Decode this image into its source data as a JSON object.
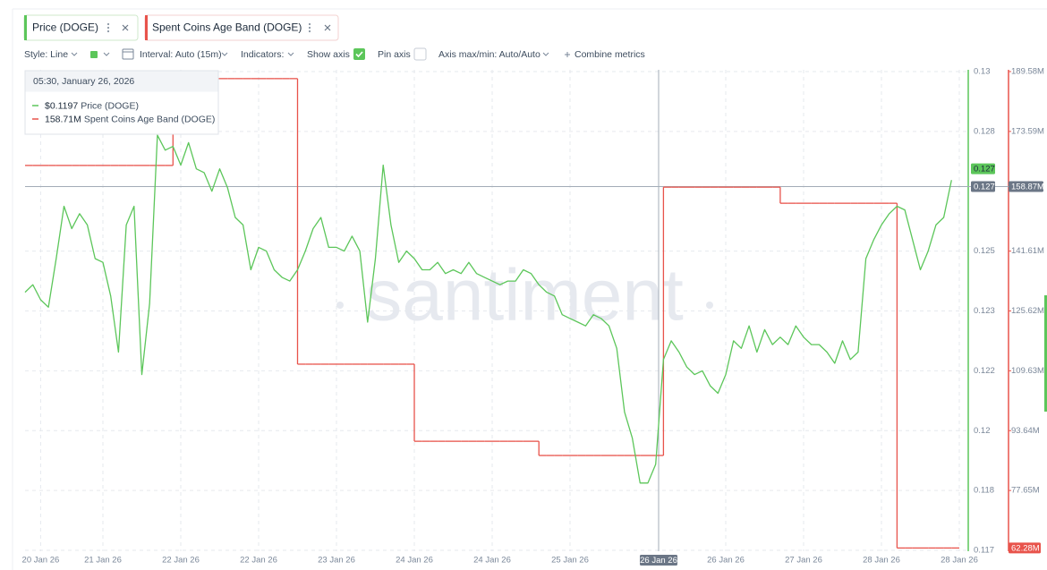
{
  "toolbar": {
    "style": "Style: Line",
    "interval": "Interval: Auto (15m)",
    "indicators": "Indicators:",
    "show_axis": "Show axis",
    "pin_axis": "Pin axis",
    "axis_range": "Axis max/min: Auto/Auto",
    "combine": "Combine metrics"
  },
  "chart_data": {
    "type": "line",
    "watermark": "santiment",
    "categories": [
      null,
      null,
      "20 Jan 26",
      null,
      null,
      null,
      null,
      null,
      null,
      null,
      "21 Jan 26",
      null,
      null,
      null,
      null,
      null,
      null,
      null,
      null,
      null,
      "22 Jan 26",
      null,
      null,
      null,
      null,
      null,
      null,
      null,
      null,
      null,
      "22 Jan 26",
      null,
      null,
      null,
      null,
      null,
      null,
      null,
      null,
      null,
      "23 Jan 26",
      null,
      null,
      null,
      null,
      null,
      null,
      null,
      null,
      null,
      "24 Jan 26",
      null,
      null,
      null,
      null,
      null,
      null,
      null,
      null,
      null,
      "24 Jan 26",
      null,
      null,
      null,
      null,
      null,
      null,
      null,
      null,
      null,
      "25 Jan 26",
      null,
      null,
      null,
      null,
      null,
      null,
      null,
      null,
      null,
      null,
      null,
      null,
      null,
      null,
      null,
      null,
      null,
      null,
      null,
      "26 Jan 26",
      null,
      null,
      null,
      null,
      null,
      null,
      null,
      null,
      null,
      "27 Jan 26",
      null,
      null,
      null,
      null,
      null,
      null,
      null,
      null,
      null,
      "28 Jan 26",
      null,
      null,
      null,
      null,
      null,
      null,
      null,
      null,
      null,
      "28 Jan 26"
    ],
    "series": [
      {
        "name": "Price (DOGE)",
        "color": "#5cc65a",
        "values": [
          0.1237,
          0.1239,
          0.1235,
          0.1233,
          0.1246,
          0.126,
          0.1254,
          0.1258,
          0.1255,
          0.1246,
          0.1245,
          0.1236,
          0.1221,
          0.1255,
          0.126,
          0.1215,
          0.1234,
          0.1279,
          0.1275,
          0.1276,
          0.1271,
          0.1277,
          0.127,
          0.1269,
          0.1264,
          0.127,
          0.1265,
          0.1257,
          0.1255,
          0.1243,
          0.1249,
          0.1248,
          0.1243,
          0.1241,
          0.124,
          0.1243,
          0.1248,
          0.1254,
          0.1257,
          0.1249,
          0.1249,
          0.1248,
          0.1252,
          0.1248,
          0.1229,
          0.1246,
          0.1271,
          0.1255,
          0.1245,
          0.1248,
          0.1246,
          0.1243,
          0.1243,
          0.1245,
          0.1242,
          0.1243,
          0.1242,
          0.1245,
          0.1242,
          0.1241,
          0.124,
          0.1239,
          0.124,
          0.124,
          0.1243,
          0.1242,
          0.1239,
          0.1237,
          0.1236,
          0.1231,
          0.123,
          0.1229,
          0.1228,
          0.1231,
          0.123,
          0.1228,
          0.1222,
          0.1205,
          0.1198,
          0.1186,
          0.1186,
          0.1191,
          0.1219,
          0.1224,
          0.1221,
          0.1217,
          0.1215,
          0.1216,
          0.1212,
          0.121,
          0.1215,
          0.1224,
          0.1222,
          0.1228,
          0.1221,
          0.1227,
          0.1223,
          0.1225,
          0.1223,
          0.1228,
          0.1225,
          0.1223,
          0.1223,
          0.1221,
          0.1218,
          0.1224,
          0.1219,
          0.1221,
          0.1246,
          0.1251,
          0.1255,
          0.1258,
          0.126,
          0.1259,
          0.1251,
          0.1243,
          0.1248,
          0.1255,
          0.1257,
          0.1267,
          null
        ]
      },
      {
        "name": "Spent Coins Age Band (DOGE)",
        "color": "#e8534b",
        "axis": "y2",
        "line_style": "step",
        "values": [
          164.5,
          164.5,
          164.5,
          164.5,
          164.5,
          164.5,
          164.5,
          164.5,
          164.5,
          164.5,
          164.5,
          164.5,
          164.5,
          164.5,
          164.5,
          164.5,
          164.5,
          164.5,
          164.5,
          187.7,
          187.7,
          187.7,
          187.7,
          187.7,
          187.7,
          187.7,
          187.7,
          187.7,
          187.7,
          187.7,
          187.7,
          187.7,
          187.7,
          187.7,
          187.7,
          111.4,
          111.4,
          111.4,
          111.4,
          111.4,
          111.4,
          111.4,
          111.4,
          111.4,
          111.4,
          111.4,
          111.4,
          111.4,
          111.4,
          111.4,
          90.8,
          90.8,
          90.8,
          90.8,
          90.8,
          90.8,
          90.8,
          90.8,
          90.8,
          90.8,
          90.8,
          90.8,
          90.8,
          90.8,
          90.8,
          90.8,
          87.0,
          87.0,
          87.0,
          87.0,
          87.0,
          87.0,
          87.0,
          87.0,
          87.0,
          87.0,
          87.0,
          87.0,
          87.0,
          87.0,
          87.0,
          87.0,
          158.7,
          158.7,
          158.7,
          158.7,
          158.7,
          158.7,
          158.7,
          158.7,
          158.7,
          158.7,
          158.7,
          158.7,
          158.7,
          158.7,
          158.7,
          154.4,
          154.4,
          154.4,
          154.4,
          154.4,
          154.4,
          154.4,
          154.4,
          154.4,
          154.4,
          154.4,
          154.4,
          154.4,
          154.4,
          154.4,
          62.28,
          62.28,
          62.28,
          62.28,
          62.28,
          62.28,
          62.28,
          62.28,
          null
        ]
      }
    ],
    "ylim": [
      0.1168,
      0.1296
    ],
    "yticks": [
      {
        "value": 0.1296,
        "label": "0.13"
      },
      0.128,
      {
        "value": 0.1248,
        "label": "0.125"
      },
      {
        "value": 0.1232,
        "label": "0.123"
      },
      {
        "value": 0.1216,
        "label": "0.122"
      },
      0.12,
      {
        "value": 0.1184,
        "label": "0.118"
      },
      {
        "value": 0.1168,
        "label": "0.117"
      }
    ],
    "y2lim": [
      61.66,
      189.58
    ],
    "y2ticks": [
      {
        "value": 189.58,
        "label": "189.58M"
      },
      {
        "value": 173.59,
        "label": "173.59M"
      },
      {
        "value": 141.61,
        "label": "141.61M"
      },
      {
        "value": 125.62,
        "label": "125.62M"
      },
      {
        "value": 109.63,
        "label": "109.63M"
      },
      {
        "value": 93.64,
        "label": "93.64M"
      },
      {
        "value": 77.65,
        "label": "77.65M"
      }
    ],
    "grid": true,
    "badges": [
      {
        "value": 0.127,
        "axis": "y"
      },
      {
        "value": 62.28,
        "label": "62.28M",
        "axis": "y2"
      }
    ],
    "crosshair": {
      "x_label": "26 Jan 26",
      "y": 0.127,
      "y2": {
        "value": 158.87,
        "label": "158.87M"
      }
    },
    "tooltip": {
      "title": "05:30, January 26, 2026",
      "values": [
        {
          "value": 0.1197,
          "label": "$0.1197"
        },
        {
          "value": 158.71,
          "label": "158.71M"
        }
      ]
    }
  }
}
